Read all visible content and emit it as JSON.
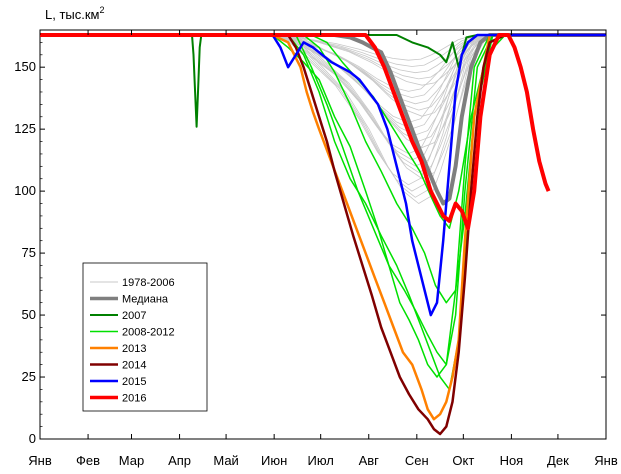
{
  "chart_data": {
    "type": "line",
    "ylabel": "L, тыс.км",
    "ylabel_sup": "2",
    "ylim": [
      0,
      165
    ],
    "y_ticks": [
      0,
      25,
      50,
      75,
      100,
      125,
      150
    ],
    "x_domain": [
      0,
      365
    ],
    "month_labels": [
      "Янв",
      "Фев",
      "Мар",
      "Апр",
      "Май",
      "Июн",
      "Июл",
      "Авг",
      "Сен",
      "Окт",
      "Ноя",
      "Дек",
      "Янв"
    ],
    "month_positions": [
      0,
      31,
      59,
      90,
      120,
      151,
      181,
      212,
      243,
      273,
      304,
      334,
      365
    ],
    "legend_position": "lower-left",
    "background_series": {
      "name": "1978-2006",
      "color": "#c8c8c8",
      "min_envelope": {
        "x": [
          150,
          165,
          180,
          195,
          210,
          222,
          232,
          242,
          250,
          256,
          262,
          268,
          274,
          282,
          290,
          300
        ],
        "y": [
          163,
          160,
          150,
          140,
          125,
          110,
          100,
          95,
          98,
          108,
          120,
          135,
          150,
          160,
          163,
          163
        ]
      }
    },
    "series": [
      {
        "name": "Медиана",
        "color": "#7f7f7f",
        "width": 4,
        "x": [
          0,
          190,
          200,
          208,
          214,
          220,
          226,
          232,
          238,
          244,
          248,
          252,
          256,
          260,
          264,
          268,
          272,
          278,
          284,
          290,
          300,
          365
        ],
        "y": [
          163,
          163,
          162,
          160,
          158,
          156,
          148,
          138,
          128,
          118,
          112,
          106,
          100,
          95,
          97,
          110,
          130,
          150,
          160,
          163,
          163,
          163
        ]
      },
      {
        "name": "2007",
        "color": "#008000",
        "width": 2,
        "x": [
          0,
          98,
          99,
          100,
          101,
          102,
          103,
          104,
          106,
          230,
          240,
          250,
          258,
          262,
          266,
          270,
          275,
          282,
          290,
          365
        ],
        "y": [
          163,
          163,
          155,
          140,
          126,
          142,
          158,
          163,
          163,
          163,
          160,
          158,
          155,
          152,
          160,
          150,
          162,
          163,
          163,
          163
        ]
      },
      {
        "name": "2008-2012",
        "color": "#00e000",
        "width": 1.5,
        "lines": [
          {
            "x": [
              0,
              150,
              160,
              170,
              180,
              190,
              200,
              210,
              218,
              225,
              232,
              238,
              244,
              250,
              256,
              262,
              268,
              274,
              280,
              290,
              300,
              365
            ],
            "y": [
              163,
              163,
              158,
              152,
              145,
              130,
              118,
              100,
              85,
              70,
              55,
              48,
              40,
              30,
              25,
              30,
              60,
              110,
              150,
              163,
              163,
              163
            ]
          },
          {
            "x": [
              0,
              160,
              170,
              180,
              190,
              200,
              210,
              220,
              230,
              238,
              246,
              252,
              258,
              264,
              270,
              276,
              284,
              292,
              300,
              365
            ],
            "y": [
              163,
              163,
              155,
              140,
              120,
              105,
              95,
              82,
              70,
              58,
              45,
              35,
              25,
              20,
              40,
              90,
              140,
              163,
              163,
              163
            ]
          },
          {
            "x": [
              0,
              165,
              175,
              185,
              195,
              205,
              215,
              225,
              235,
              242,
              250,
              256,
              262,
              268,
              274,
              282,
              292,
              365
            ],
            "y": [
              163,
              163,
              150,
              135,
              118,
              100,
              85,
              70,
              60,
              52,
              42,
              35,
              30,
              50,
              100,
              150,
              163,
              163
            ]
          },
          {
            "x": [
              0,
              170,
              180,
              190,
              200,
              210,
              220,
              230,
              240,
              248,
              255,
              262,
              268,
              274,
              280,
              290,
              300,
              365
            ],
            "y": [
              163,
              163,
              158,
              148,
              135,
              120,
              108,
              95,
              85,
              75,
              62,
              55,
              60,
              90,
              130,
              160,
              163,
              163
            ]
          },
          {
            "x": [
              0,
              175,
              185,
              195,
              205,
              215,
              225,
              235,
              245,
              252,
              258,
              264,
              270,
              278,
              288,
              300,
              365
            ],
            "y": [
              163,
              163,
              160,
              152,
              145,
              138,
              128,
              118,
              108,
              98,
              90,
              85,
              100,
              130,
              155,
              163,
              163
            ]
          }
        ]
      },
      {
        "name": "2013",
        "color": "#ff8000",
        "width": 2.5,
        "x": [
          0,
          150,
          160,
          168,
          172,
          176,
          180,
          186,
          192,
          198,
          204,
          210,
          216,
          222,
          228,
          234,
          240,
          246,
          250,
          254,
          258,
          262,
          266,
          270,
          274,
          280,
          290,
          365
        ],
        "y": [
          163,
          163,
          160,
          150,
          140,
          132,
          125,
          115,
          105,
          95,
          85,
          75,
          65,
          55,
          45,
          35,
          30,
          20,
          12,
          8,
          10,
          15,
          25,
          40,
          80,
          130,
          163,
          163
        ]
      },
      {
        "name": "2014",
        "color": "#800000",
        "width": 2.5,
        "x": [
          0,
          160,
          165,
          170,
          175,
          180,
          185,
          190,
          196,
          202,
          208,
          214,
          220,
          226,
          232,
          238,
          244,
          250,
          254,
          258,
          262,
          266,
          270,
          274,
          278,
          282,
          286,
          290,
          300,
          365
        ],
        "y": [
          163,
          163,
          158,
          150,
          140,
          130,
          120,
          108,
          95,
          82,
          70,
          58,
          45,
          35,
          25,
          18,
          12,
          8,
          4,
          2,
          5,
          15,
          35,
          65,
          100,
          130,
          150,
          160,
          163,
          163
        ]
      },
      {
        "name": "2015",
        "color": "#0000ff",
        "width": 2.5,
        "x": [
          0,
          150,
          155,
          160,
          165,
          170,
          176,
          182,
          188,
          194,
          200,
          206,
          212,
          218,
          224,
          230,
          236,
          240,
          244,
          248,
          252,
          256,
          260,
          264,
          268,
          272,
          276,
          282,
          290,
          365
        ],
        "y": [
          163,
          163,
          158,
          150,
          155,
          160,
          158,
          155,
          152,
          150,
          148,
          145,
          140,
          135,
          125,
          110,
          95,
          80,
          70,
          60,
          50,
          55,
          80,
          110,
          140,
          155,
          160,
          163,
          163,
          163
        ]
      },
      {
        "name": "2016",
        "color": "#ff0000",
        "width": 4,
        "x": [
          0,
          210,
          216,
          222,
          228,
          234,
          240,
          246,
          252,
          256,
          260,
          264,
          268,
          272,
          276,
          280,
          284,
          290,
          296,
          302,
          306,
          310,
          314,
          318,
          322,
          326,
          328
        ],
        "y": [
          163,
          163,
          158,
          150,
          140,
          130,
          120,
          112,
          100,
          95,
          90,
          88,
          95,
          92,
          85,
          100,
          130,
          155,
          163,
          163,
          158,
          150,
          140,
          125,
          112,
          103,
          100
        ]
      }
    ]
  }
}
